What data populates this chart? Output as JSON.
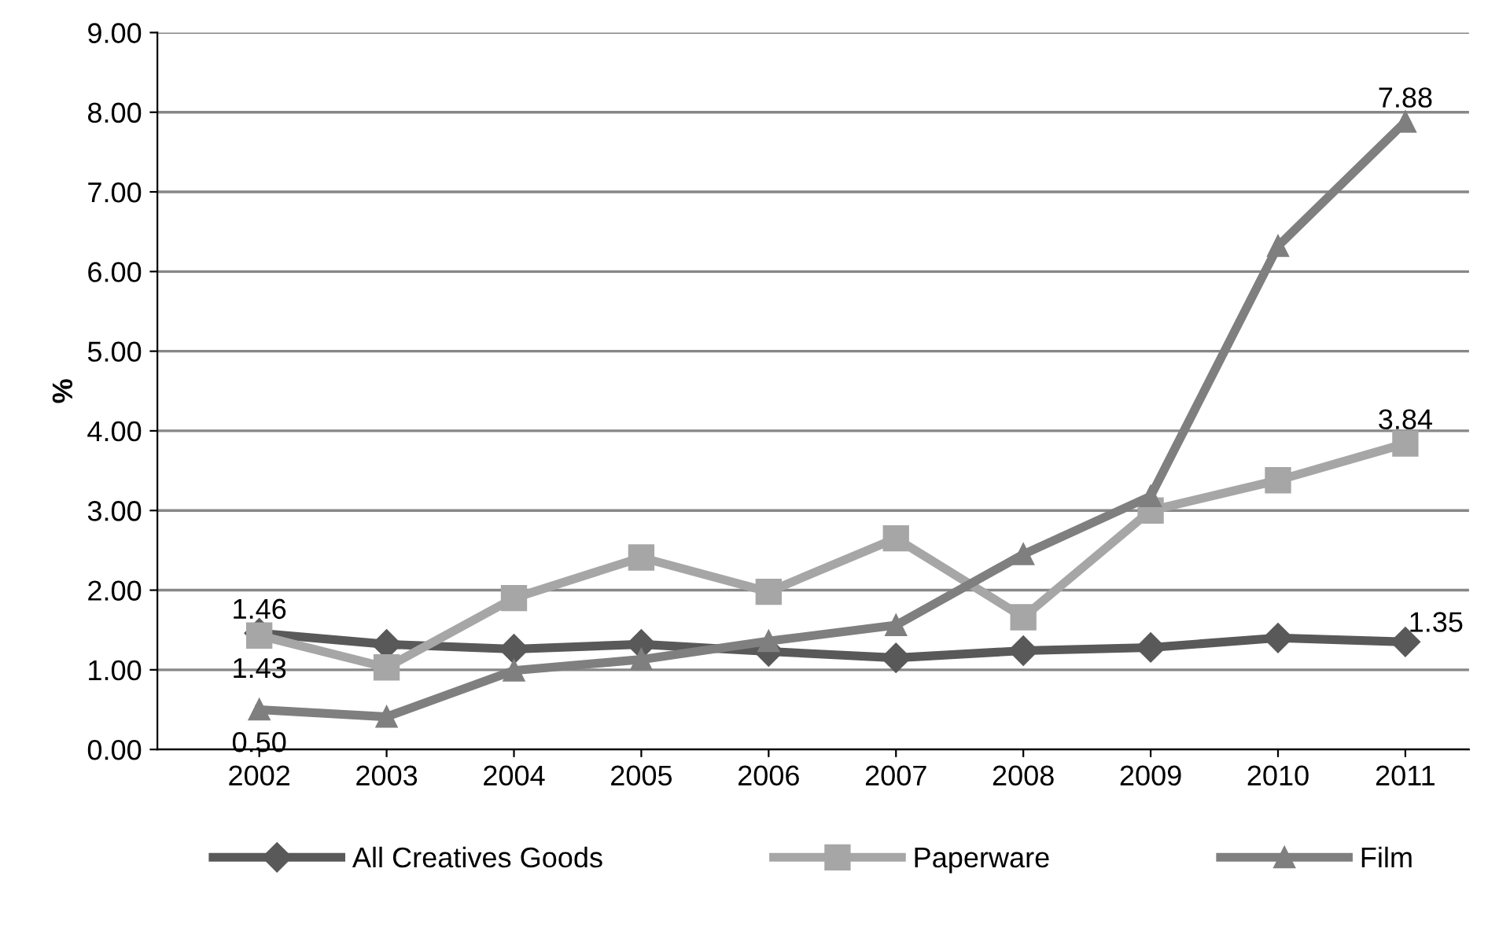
{
  "chart_data": {
    "type": "line",
    "ylabel": "%",
    "categories": [
      "2002",
      "2003",
      "2004",
      "2005",
      "2006",
      "2007",
      "2008",
      "2009",
      "2010",
      "2011"
    ],
    "series": [
      {
        "name": "All Creatives Goods",
        "color": "#595959",
        "marker": "diamond",
        "values": [
          1.46,
          1.32,
          1.26,
          1.32,
          1.23,
          1.15,
          1.24,
          1.28,
          1.4,
          1.35
        ],
        "value_labels": [
          "1.46",
          null,
          null,
          null,
          null,
          null,
          null,
          null,
          null,
          "1.35"
        ]
      },
      {
        "name": "Paperware",
        "color": "#a6a6a6",
        "marker": "square",
        "values": [
          1.43,
          1.03,
          1.9,
          2.41,
          1.98,
          2.65,
          1.66,
          3.0,
          3.38,
          3.84
        ],
        "value_labels": [
          "1.43",
          null,
          null,
          null,
          null,
          null,
          null,
          null,
          null,
          "3.84"
        ]
      },
      {
        "name": "Film",
        "color": "#7f7f7f",
        "marker": "triangle",
        "values": [
          0.5,
          0.41,
          0.99,
          1.13,
          1.36,
          1.56,
          2.45,
          3.18,
          6.32,
          7.88
        ],
        "value_labels": [
          "0.50",
          null,
          null,
          null,
          null,
          null,
          null,
          null,
          null,
          "7.88"
        ]
      }
    ],
    "ylim": [
      0,
      9
    ],
    "yticks": [
      {
        "value": 0,
        "label": "0.00"
      },
      {
        "value": 1,
        "label": "1.00"
      },
      {
        "value": 2,
        "label": "2.00"
      },
      {
        "value": 3,
        "label": "3.00"
      },
      {
        "value": 4,
        "label": "4.00"
      },
      {
        "value": 5,
        "label": "5.00"
      },
      {
        "value": 6,
        "label": "6.00"
      },
      {
        "value": 7,
        "label": "7.00"
      },
      {
        "value": 8,
        "label": "8.00"
      },
      {
        "value": 9,
        "label": "9.00"
      }
    ],
    "grid": "y",
    "legend": "bottom",
    "line_style": "solid"
  }
}
